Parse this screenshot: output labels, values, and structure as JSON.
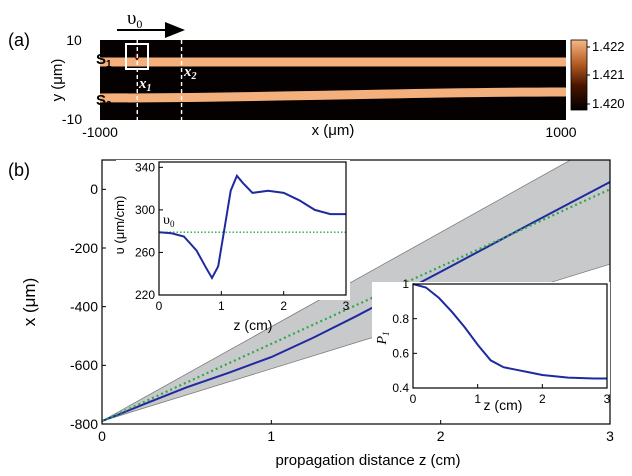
{
  "panel_labels": {
    "a": "(a)",
    "b": "(b)"
  },
  "colors": {
    "guide": "#f3b07c",
    "background": "#050100",
    "band": "#c8c9cb",
    "trajectory": "#1f2a9e",
    "reference": "#2ea84a"
  },
  "chart_data": [
    {
      "id": "a",
      "type": "heatmap",
      "ylabel": "y (μm)",
      "xlabel": "x (μm)",
      "xlim": [
        -1000,
        1000
      ],
      "ylim": [
        -10,
        10
      ],
      "x_ticks": [
        "-1000",
        "1000"
      ],
      "y_ticks": [
        "10",
        "-10"
      ],
      "guides": [
        {
          "name": "S1",
          "label_main": "S",
          "label_sub": "1",
          "y_left": 4.5,
          "y_right": 4.5
        },
        {
          "name": "S2",
          "label_main": "S",
          "label_sub": "2",
          "y_left": -4.5,
          "y_right": -3.0
        }
      ],
      "velocity_label": "υ",
      "velocity_sub": "0",
      "markers": [
        {
          "label": "x",
          "sub": "1",
          "x": -840
        },
        {
          "label": "x",
          "sub": "2",
          "x": -650
        }
      ],
      "colorbar": {
        "ticks": [
          "1.422",
          "1.421",
          "1.420"
        ],
        "min": 1.42,
        "max": 1.4225
      }
    },
    {
      "id": "b",
      "type": "line",
      "xlabel": "propagation distance z (cm)",
      "ylabel": "x (μm)",
      "xlim": [
        0,
        3
      ],
      "ylim": [
        -800,
        100
      ],
      "x_ticks": [
        "0",
        "1",
        "2",
        "3"
      ],
      "y_ticks": [
        "0",
        "-200",
        "-400",
        "-600",
        "-800"
      ],
      "band_upper": {
        "x": [
          0,
          3
        ],
        "y": [
          -790,
          175
        ]
      },
      "band_lower": {
        "x": [
          0,
          3
        ],
        "y": [
          -790,
          -255
        ]
      },
      "series": [
        {
          "style": "solid",
          "x": [
            0,
            0.25,
            0.5,
            0.75,
            1.0,
            1.25,
            1.5,
            1.75,
            2.0,
            2.25,
            2.5,
            2.75,
            3.0
          ],
          "y": [
            -790,
            -732,
            -675,
            -625,
            -572,
            -505,
            -433,
            -357,
            -281,
            -204,
            -127,
            -51,
            25
          ]
        },
        {
          "style": "dotted",
          "x": [
            0,
            3
          ],
          "y": [
            -790,
            0
          ]
        }
      ]
    },
    {
      "id": "b-inset-velocity",
      "type": "line",
      "xlabel": "z (cm)",
      "ylabel": "υ (μm/cm)",
      "xlim": [
        0,
        3
      ],
      "ylim": [
        220,
        345
      ],
      "x_ticks": [
        "0",
        "1",
        "2",
        "3"
      ],
      "y_ticks": [
        "340",
        "300",
        "260",
        "220"
      ],
      "reference_label": "υ",
      "reference_sub": "0",
      "series": [
        {
          "style": "solid",
          "x": [
            0,
            0.2,
            0.4,
            0.6,
            0.75,
            0.85,
            0.95,
            1.05,
            1.15,
            1.25,
            1.35,
            1.5,
            1.75,
            2.0,
            2.25,
            2.5,
            2.75,
            3.0
          ],
          "y": [
            279,
            278,
            275,
            262,
            246,
            236,
            247,
            282,
            318,
            332,
            325,
            316,
            318,
            316,
            309,
            300,
            296,
            296
          ]
        },
        {
          "style": "dotted",
          "x": [
            0,
            3
          ],
          "y": [
            279,
            279
          ]
        }
      ]
    },
    {
      "id": "b-inset-probability",
      "type": "line",
      "xlabel": "z (cm)",
      "ylabel": "P",
      "ylabel_sub": "1",
      "xlim": [
        0,
        3
      ],
      "ylim": [
        0.4,
        1.0
      ],
      "x_ticks": [
        "0",
        "1",
        "2",
        "3"
      ],
      "y_ticks": [
        "1",
        "0.8",
        "0.6",
        "0.4"
      ],
      "series": [
        {
          "style": "solid",
          "x": [
            0,
            0.2,
            0.4,
            0.6,
            0.8,
            1.0,
            1.2,
            1.4,
            1.6,
            1.8,
            2.0,
            2.4,
            2.8,
            3.0
          ],
          "y": [
            1.0,
            0.98,
            0.92,
            0.84,
            0.75,
            0.65,
            0.56,
            0.52,
            0.505,
            0.49,
            0.475,
            0.46,
            0.455,
            0.455
          ]
        }
      ]
    }
  ]
}
